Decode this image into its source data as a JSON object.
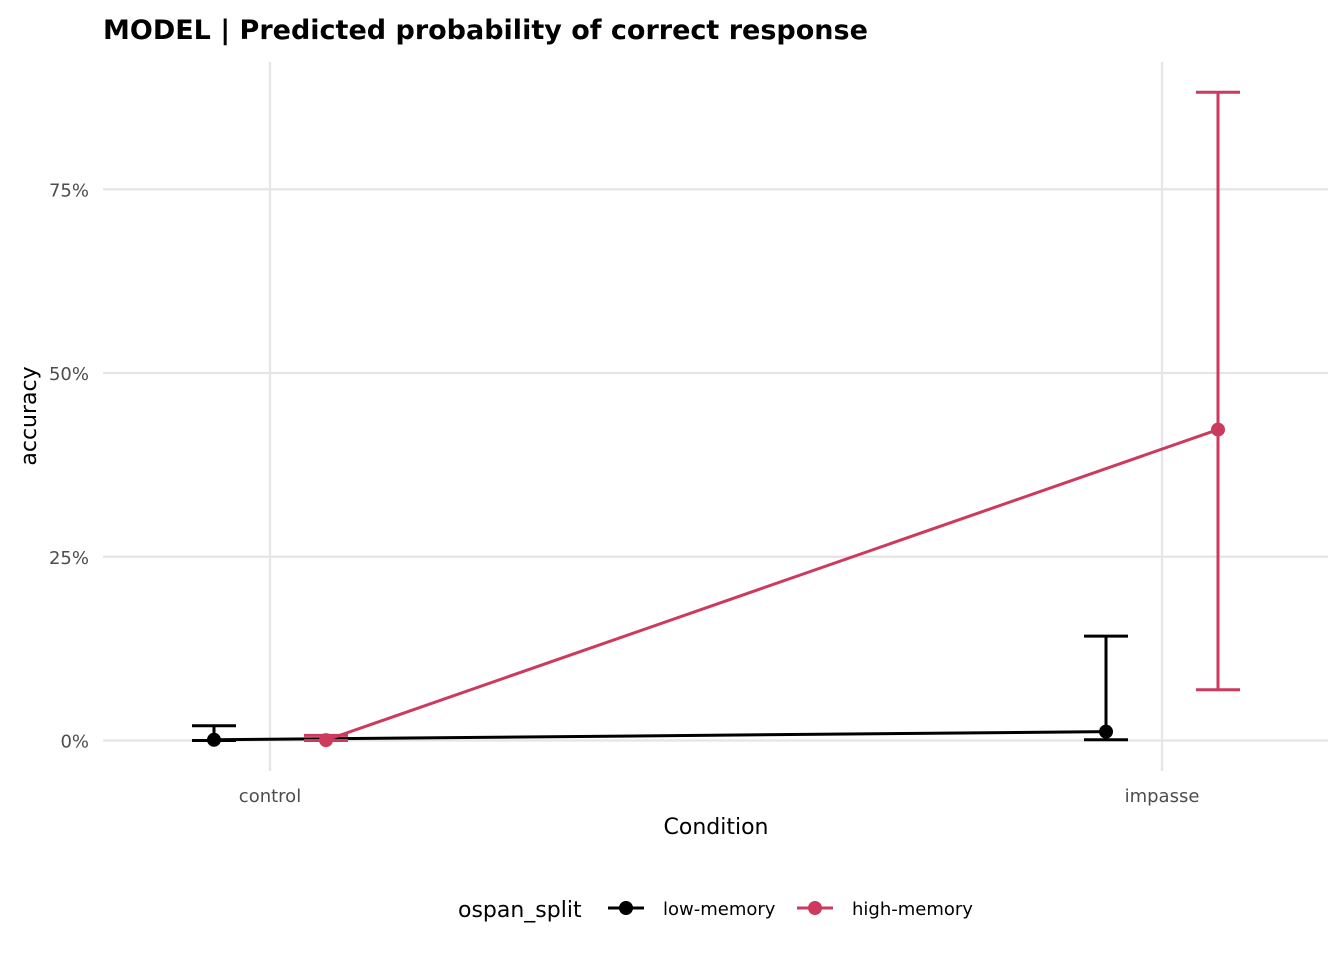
{
  "chart_data": {
    "type": "line",
    "title": "MODEL | Predicted probability of correct response",
    "xlabel": "Condition",
    "ylabel": "accuracy",
    "categories": [
      "control",
      "impasse"
    ],
    "y_ticks": [
      0,
      25,
      50,
      75
    ],
    "y_tick_labels": [
      "0%",
      "25%",
      "50%",
      "75%"
    ],
    "ylim": [
      -5,
      92
    ],
    "grid": true,
    "legend": {
      "title": "ospan_split",
      "position": "bottom"
    },
    "series": [
      {
        "name": "low-memory",
        "color": "#000000",
        "values": [
          0.1,
          1.2
        ],
        "lower": [
          0.0,
          0.1
        ],
        "upper": [
          2.0,
          14.2
        ]
      },
      {
        "name": "high-memory",
        "color": "#CC3A5E",
        "values": [
          0.05,
          42.3
        ],
        "lower": [
          0.0,
          6.9
        ],
        "upper": [
          0.7,
          88.2
        ]
      }
    ]
  }
}
